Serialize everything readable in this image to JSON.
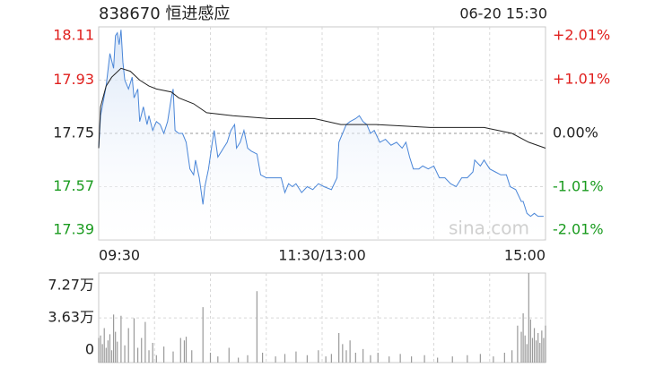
{
  "chart_data": [
    {
      "type": "line",
      "title": "838670 恒进感应",
      "subtitle": "06-20 15:30",
      "watermark": "sina.com",
      "xlim": [
        0,
        240
      ],
      "xticks": [
        {
          "value": 0,
          "label": "09:30"
        },
        {
          "value": 120,
          "label": "11:30/13:00"
        },
        {
          "value": 240,
          "label": "15:00"
        }
      ],
      "ylim": [
        17.39,
        18.11
      ],
      "yticks": [
        17.39,
        17.57,
        17.75,
        17.93,
        18.11
      ],
      "y2lim": [
        -2.01,
        2.01
      ],
      "y2ticks": [
        {
          "value": -2.01,
          "label": "-2.01%"
        },
        {
          "value": -1.01,
          "label": "-1.01%"
        },
        {
          "value": 0,
          "label": "0.00%"
        },
        {
          "value": 1.01,
          "label": "+1.01%"
        },
        {
          "value": 2.01,
          "label": "+2.01%"
        }
      ],
      "grid": true,
      "tick_colors": {
        "up": "#e0201e",
        "flat": "#222222",
        "down": "#1a9b1f"
      },
      "series": [
        {
          "color": "#4a86d8",
          "fill": "#d6e4f7",
          "x": [
            0,
            1,
            4,
            6,
            8,
            9,
            10,
            11,
            12,
            13,
            14,
            16,
            18,
            19,
            21,
            22,
            24,
            26,
            27,
            29,
            31,
            33,
            35,
            37,
            39,
            40,
            41,
            43,
            45,
            47,
            49,
            51,
            52,
            54,
            56,
            57,
            59,
            61,
            62,
            64,
            66,
            67,
            69,
            71,
            73,
            74,
            76,
            78,
            80,
            82,
            85,
            87,
            90,
            94,
            98,
            100,
            102,
            104,
            106,
            109,
            112,
            115,
            118,
            121,
            125,
            128,
            129,
            131,
            133,
            135,
            138,
            140,
            142,
            144,
            146,
            148,
            151,
            154,
            157,
            160,
            163,
            165,
            167,
            169,
            172,
            174,
            177,
            180,
            183,
            186,
            189,
            192,
            195,
            198,
            201,
            202,
            205,
            207,
            210,
            213,
            216,
            219,
            221,
            224,
            227,
            228,
            230,
            232,
            234,
            236,
            239
          ],
          "values": [
            17.7,
            17.81,
            17.91,
            18.02,
            17.97,
            18.08,
            18.09,
            18.05,
            18.1,
            17.99,
            17.93,
            17.9,
            17.94,
            17.87,
            17.9,
            17.79,
            17.84,
            17.78,
            17.81,
            17.76,
            17.79,
            17.78,
            17.75,
            17.79,
            17.87,
            17.9,
            17.76,
            17.75,
            17.75,
            17.72,
            17.63,
            17.61,
            17.66,
            17.6,
            17.51,
            17.57,
            17.63,
            17.72,
            17.76,
            17.67,
            17.69,
            17.7,
            17.72,
            17.76,
            17.78,
            17.7,
            17.72,
            17.76,
            17.7,
            17.69,
            17.68,
            17.61,
            17.6,
            17.6,
            17.6,
            17.55,
            17.58,
            17.57,
            17.58,
            17.55,
            17.57,
            17.56,
            17.58,
            17.57,
            17.56,
            17.6,
            17.72,
            17.75,
            17.78,
            17.79,
            17.8,
            17.81,
            17.79,
            17.78,
            17.75,
            17.76,
            17.72,
            17.73,
            17.71,
            17.72,
            17.7,
            17.72,
            17.67,
            17.63,
            17.63,
            17.64,
            17.63,
            17.64,
            17.6,
            17.6,
            17.58,
            17.57,
            17.6,
            17.6,
            17.62,
            17.66,
            17.64,
            17.66,
            17.63,
            17.62,
            17.61,
            17.61,
            17.57,
            17.56,
            17.52,
            17.52,
            17.48,
            17.47,
            17.48,
            17.47,
            17.47
          ]
        },
        {
          "color": "#222222",
          "x": [
            0,
            1,
            4,
            7,
            12,
            17,
            22,
            27,
            31,
            39,
            43,
            51,
            58,
            72,
            92,
            116,
            130,
            149,
            178,
            207,
            222,
            231,
            240
          ],
          "values": [
            17.7,
            17.84,
            17.91,
            17.94,
            17.97,
            17.96,
            17.93,
            17.91,
            17.9,
            17.89,
            17.87,
            17.85,
            17.82,
            17.81,
            17.8,
            17.8,
            17.78,
            17.78,
            17.77,
            17.77,
            17.75,
            17.72,
            17.7
          ]
        }
      ]
    },
    {
      "type": "bar",
      "xlim": [
        0,
        240
      ],
      "ylim": [
        0,
        7.27
      ],
      "yticks": [
        0,
        {
          "value": 3.63,
          "label": "3.63万"
        },
        {
          "value": 7.27,
          "label": "7.27万"
        }
      ],
      "grid": true,
      "color": "#9a9a9a",
      "x": [
        0,
        1,
        2,
        3,
        4,
        5,
        6,
        7,
        8,
        9,
        10,
        12,
        14,
        16,
        19,
        21,
        23,
        25,
        27,
        29,
        31,
        35,
        40,
        44,
        46,
        47,
        50,
        56,
        60,
        64,
        70,
        75,
        80,
        85,
        88,
        95,
        100,
        106,
        112,
        118,
        122,
        125,
        129,
        131,
        133,
        135,
        138,
        142,
        146,
        150,
        156,
        162,
        168,
        175,
        182,
        190,
        198,
        205,
        212,
        218,
        222,
        225,
        227,
        228,
        229,
        230,
        231,
        232,
        233,
        234,
        235,
        236,
        237,
        238,
        239,
        240
      ],
      "values": [
        2.0,
        2.2,
        1.5,
        2.8,
        1.2,
        1.8,
        2.3,
        1.0,
        3.9,
        2.5,
        1.7,
        3.8,
        1.4,
        2.8,
        3.6,
        1.2,
        2.0,
        3.3,
        1.0,
        1.6,
        0.6,
        1.3,
        0.9,
        2.0,
        1.8,
        2.1,
        1.0,
        4.5,
        0.8,
        0.5,
        1.2,
        0.4,
        0.6,
        5.8,
        0.8,
        0.5,
        0.7,
        0.9,
        0.6,
        1.0,
        0.5,
        0.7,
        2.4,
        1.5,
        1.0,
        1.8,
        0.8,
        1.1,
        0.6,
        0.8,
        0.5,
        0.7,
        0.5,
        0.6,
        0.4,
        0.5,
        0.6,
        0.7,
        0.5,
        0.8,
        1.0,
        3.0,
        2.5,
        4.0,
        2.2,
        1.5,
        7.27,
        3.5,
        2.0,
        2.8,
        1.8,
        2.4,
        1.6,
        2.6,
        2.0,
        3.0
      ]
    }
  ]
}
